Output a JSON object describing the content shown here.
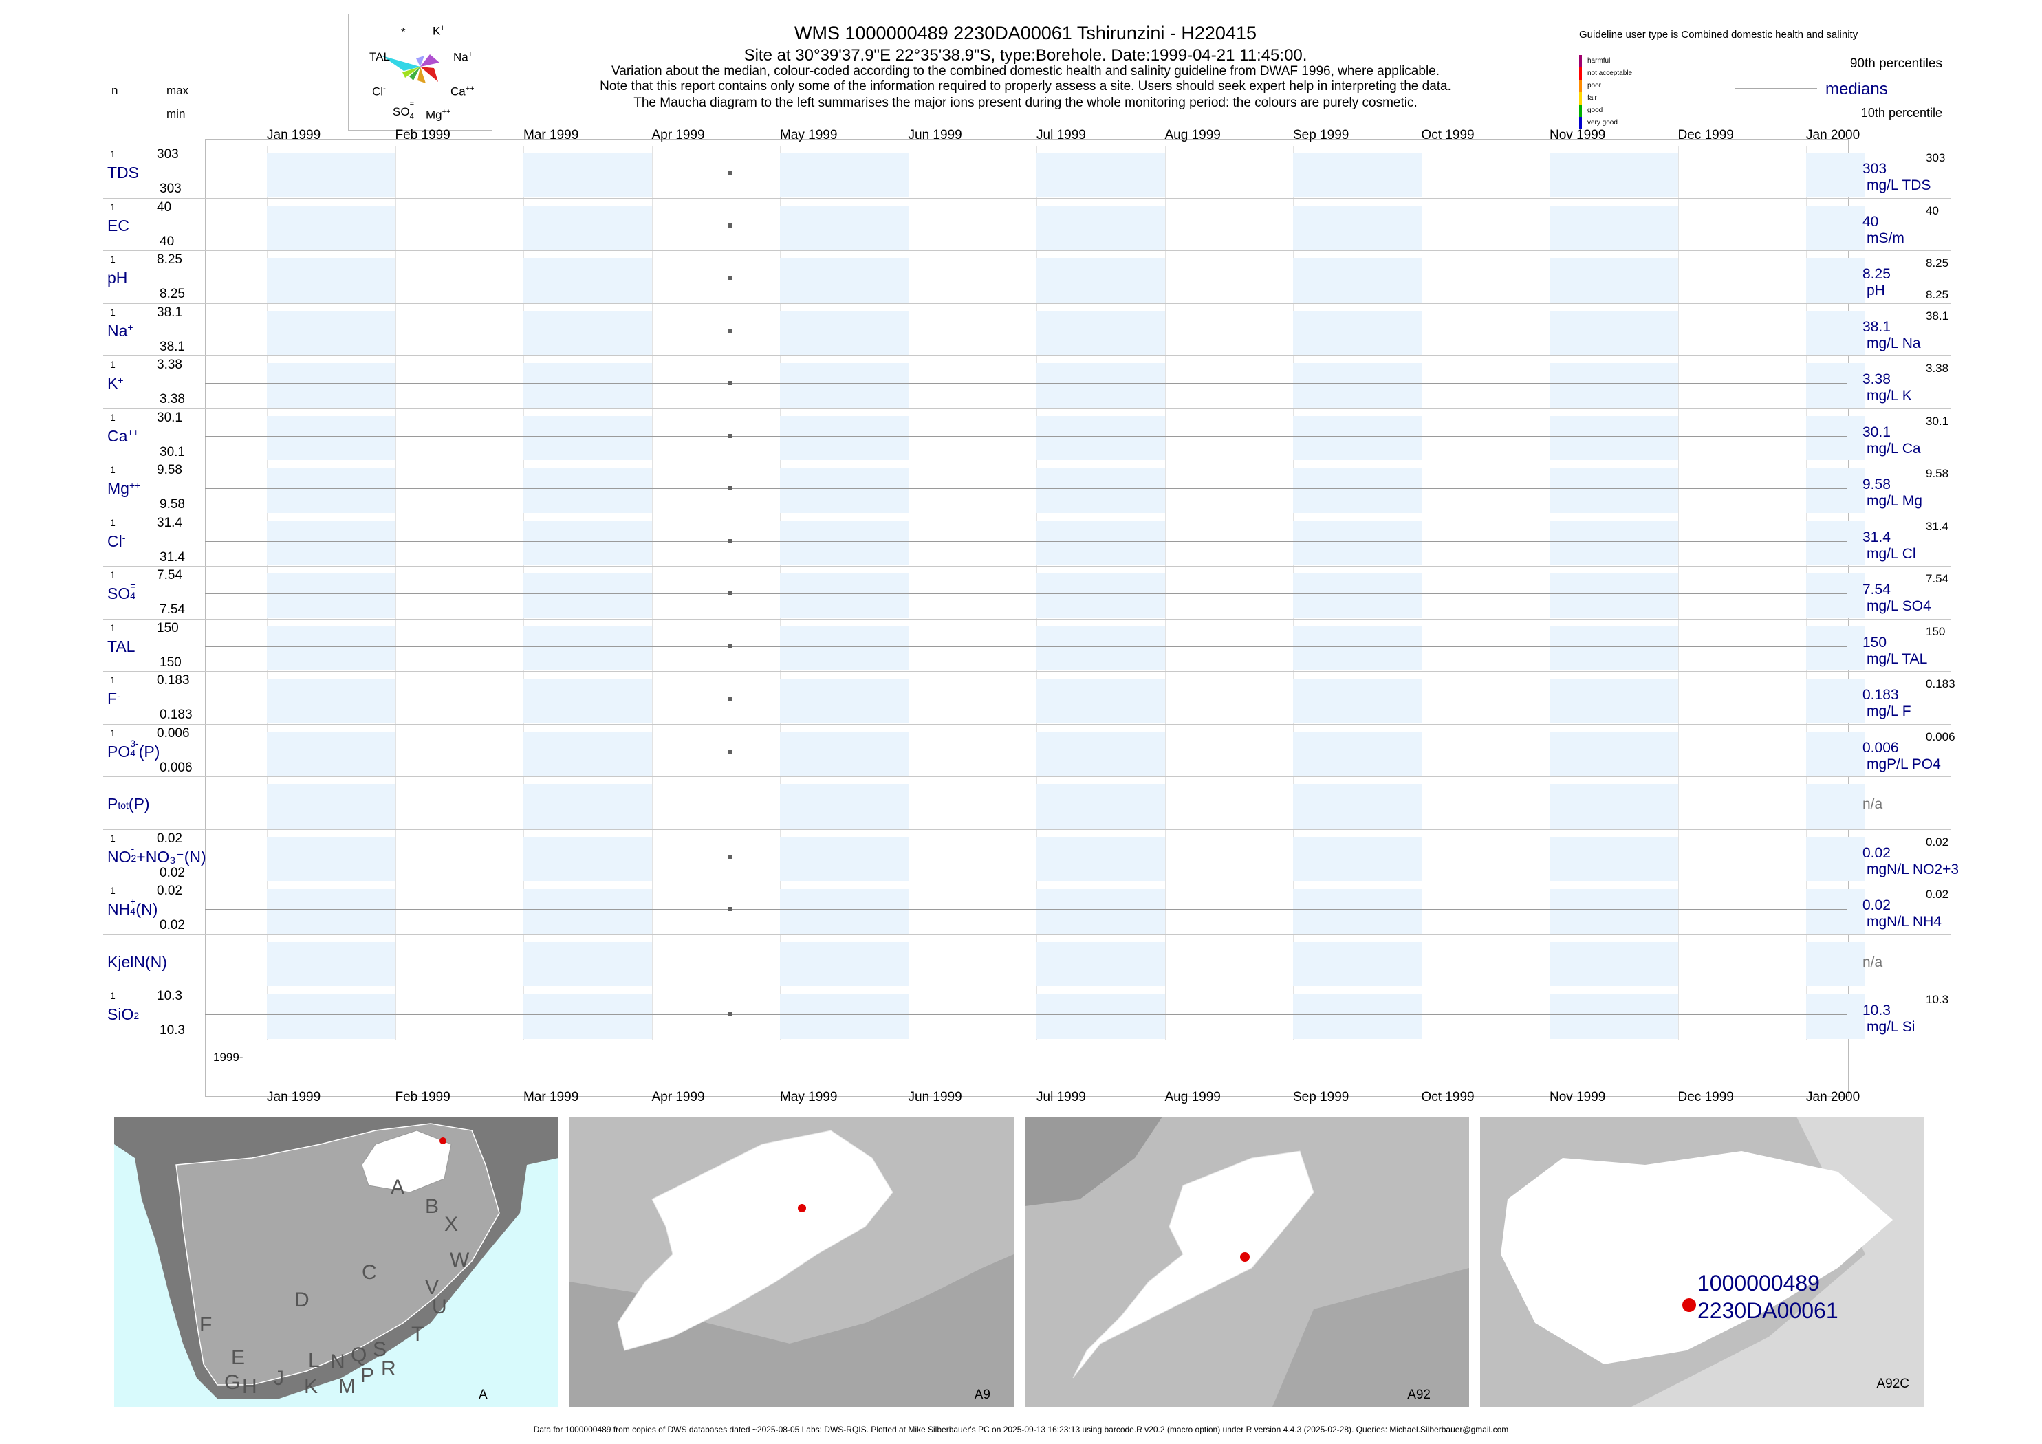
{
  "header": {
    "title": "WMS 1000000489 2230DA00061 Tshirunzini - H220415",
    "site_line": "Site at 30°39'37.9\"E 22°35'38.9\"S, type:Borehole. Date:1999-04-21 11:45:00.",
    "note1": "Variation about the median,  colour-coded according to the combined domestic health and salinity guideline from DWAF 1996, where applicable.",
    "note2": "Note that this report contains only some of the information required to properly assess a site. Users should seek expert help in interpreting the data.",
    "note3": "The Maucha diagram to the left summarises the major ions present during the whole monitoring period: the colours are purely cosmetic."
  },
  "left_header": {
    "n": "n",
    "max": "max",
    "min": "min"
  },
  "maucha": {
    "k": "K",
    "k_sup": "+",
    "star": "*",
    "tal": "TAL",
    "na": "Na",
    "na_sup": "+",
    "cl": "Cl",
    "cl_sup": "-",
    "ca": "Ca",
    "ca_sup": "++",
    "so4": "SO",
    "so4_sub": "4",
    "so4_sup": "=",
    "mg": "Mg",
    "mg_sup": "++"
  },
  "guideline": {
    "title": "Guideline user type is Combined domestic health and salinity",
    "legend": [
      "harmful",
      "not acceptable",
      "poor",
      "fair",
      "good",
      "very good"
    ],
    "legend_colors": [
      "#a0006e",
      "#ff0000",
      "#ff8c00",
      "#ffd700",
      "#00b000",
      "#0000cd"
    ],
    "p90": "90th percentiles",
    "medians": "medians",
    "p10": "10th percentile"
  },
  "months": [
    "Jan 1999",
    "Feb 1999",
    "Mar 1999",
    "Apr 1999",
    "May 1999",
    "Jun 1999",
    "Jul 1999",
    "Aug 1999",
    "Sep 1999",
    "Oct 1999",
    "Nov 1999",
    "Dec 1999",
    "Jan 2000"
  ],
  "year_label": "1999-",
  "chart_data": {
    "type": "scatter",
    "x_range": [
      "1999-01-01",
      "2000-01-01"
    ],
    "sample_date": "1999-04-21",
    "variables": [
      {
        "name": "TDS",
        "sup": "",
        "sub": "",
        "tail": "",
        "n": "1",
        "max": "303",
        "min": "303",
        "value": 303,
        "right_val": "303",
        "right_max": "303",
        "right_min": "",
        "unit": "mg/L TDS"
      },
      {
        "name": "EC",
        "sup": "",
        "sub": "",
        "tail": "",
        "n": "1",
        "max": "40",
        "min": "40",
        "value": 40,
        "right_val": "40",
        "right_max": "40",
        "right_min": "",
        "unit": "mS/m"
      },
      {
        "name": "pH",
        "sup": "",
        "sub": "",
        "tail": "",
        "n": "1",
        "max": "8.25",
        "min": "8.25",
        "value": 8.25,
        "right_val": "8.25",
        "right_max": "8.25",
        "right_min": "8.25",
        "unit": "pH"
      },
      {
        "name": "Na",
        "sup": "+",
        "sub": "",
        "tail": "",
        "n": "1",
        "max": "38.1",
        "min": "38.1",
        "value": 38.1,
        "right_val": "38.1",
        "right_max": "38.1",
        "right_min": "",
        "unit": "mg/L Na"
      },
      {
        "name": "K",
        "sup": "+",
        "sub": "",
        "tail": "",
        "n": "1",
        "max": "3.38",
        "min": "3.38",
        "value": 3.38,
        "right_val": "3.38",
        "right_max": "3.38",
        "right_min": "",
        "unit": "mg/L K"
      },
      {
        "name": "Ca",
        "sup": "++",
        "sub": "",
        "tail": "",
        "n": "1",
        "max": "30.1",
        "min": "30.1",
        "value": 30.1,
        "right_val": "30.1",
        "right_max": "30.1",
        "right_min": "",
        "unit": "mg/L Ca"
      },
      {
        "name": "Mg",
        "sup": "++",
        "sub": "",
        "tail": "",
        "n": "1",
        "max": "9.58",
        "min": "9.58",
        "value": 9.58,
        "right_val": "9.58",
        "right_max": "9.58",
        "right_min": "",
        "unit": "mg/L Mg"
      },
      {
        "name": "Cl",
        "sup": "-",
        "sub": "",
        "tail": "",
        "n": "1",
        "max": "31.4",
        "min": "31.4",
        "value": 31.4,
        "right_val": "31.4",
        "right_max": "31.4",
        "right_min": "",
        "unit": "mg/L Cl"
      },
      {
        "name": "SO",
        "sup": "=",
        "sub": "4",
        "tail": "",
        "n": "1",
        "max": "7.54",
        "min": "7.54",
        "value": 7.54,
        "right_val": "7.54",
        "right_max": "7.54",
        "right_min": "",
        "unit": "mg/L SO4"
      },
      {
        "name": "TAL",
        "sup": "",
        "sub": "",
        "tail": "",
        "n": "1",
        "max": "150",
        "min": "150",
        "value": 150,
        "right_val": "150",
        "right_max": "150",
        "right_min": "",
        "unit": "mg/L TAL"
      },
      {
        "name": "F",
        "sup": "-",
        "sub": "",
        "tail": "",
        "n": "1",
        "max": "0.183",
        "min": "0.183",
        "value": 0.183,
        "right_val": "0.183",
        "right_max": "0.183",
        "right_min": "",
        "unit": "mg/L F"
      },
      {
        "name": "PO",
        "sup": "3-",
        "sub": "4",
        "tail": "(P)",
        "n": "1",
        "max": "0.006",
        "min": "0.006",
        "value": 0.006,
        "right_val": "0.006",
        "right_max": "0.006",
        "right_min": "",
        "unit": "mgP/L PO4"
      },
      {
        "name": "P",
        "sup": "",
        "sub": "tot",
        "tail": "(P)",
        "n": "",
        "max": "",
        "min": "",
        "value": null,
        "right_val": "n/a",
        "right_max": "",
        "right_min": "",
        "unit": ""
      },
      {
        "name": "NO",
        "sup": "-",
        "sub": "2",
        "tail": "+NO₃⁻(N)",
        "n": "1",
        "max": "0.02",
        "min": "0.02",
        "value": 0.02,
        "right_val": "0.02",
        "right_max": "0.02",
        "right_min": "",
        "unit": "mgN/L NO2+3"
      },
      {
        "name": "NH",
        "sup": "+",
        "sub": "4",
        "tail": "(N)",
        "n": "1",
        "max": "0.02",
        "min": "0.02",
        "value": 0.02,
        "right_val": "0.02",
        "right_max": "0.02",
        "right_min": "",
        "unit": "mgN/L NH4"
      },
      {
        "name": "KjelN(N)",
        "sup": "",
        "sub": "",
        "tail": "",
        "n": "",
        "max": "",
        "min": "",
        "value": null,
        "right_val": "n/a",
        "right_max": "",
        "right_min": "",
        "unit": ""
      },
      {
        "name": "SiO",
        "sup": "",
        "sub": "2",
        "tail": "",
        "n": "1",
        "max": "10.3",
        "min": "10.3",
        "value": 10.3,
        "right_val": "10.3",
        "right_max": "10.3",
        "right_min": "",
        "unit": "mg/L Si"
      }
    ]
  },
  "maps": {
    "map_a_label": "A",
    "region_letters": [
      "A",
      "B",
      "X",
      "W",
      "C",
      "V",
      "U",
      "D",
      "T",
      "F",
      "E",
      "G",
      "H",
      "J",
      "K",
      "L",
      "N",
      "M",
      "Q",
      "P",
      "S",
      "R"
    ],
    "map2_label": "A9",
    "map3_label": "A92",
    "map4_label": "A92C",
    "site_id1": "1000000489",
    "site_id2": "2230DA00061"
  },
  "footer": "Data for 1000000489 from copies of DWS databases dated ~2025-08-05 Labs: DWS-RQIS. Plotted at Mike Silberbauer's PC on 2025-09-13 16:23:13 using barcode.R v20.2 (macro option) under R version 4.4.3 (2025-02-28). Queries: Michael.Silberbauer@gmail.com"
}
